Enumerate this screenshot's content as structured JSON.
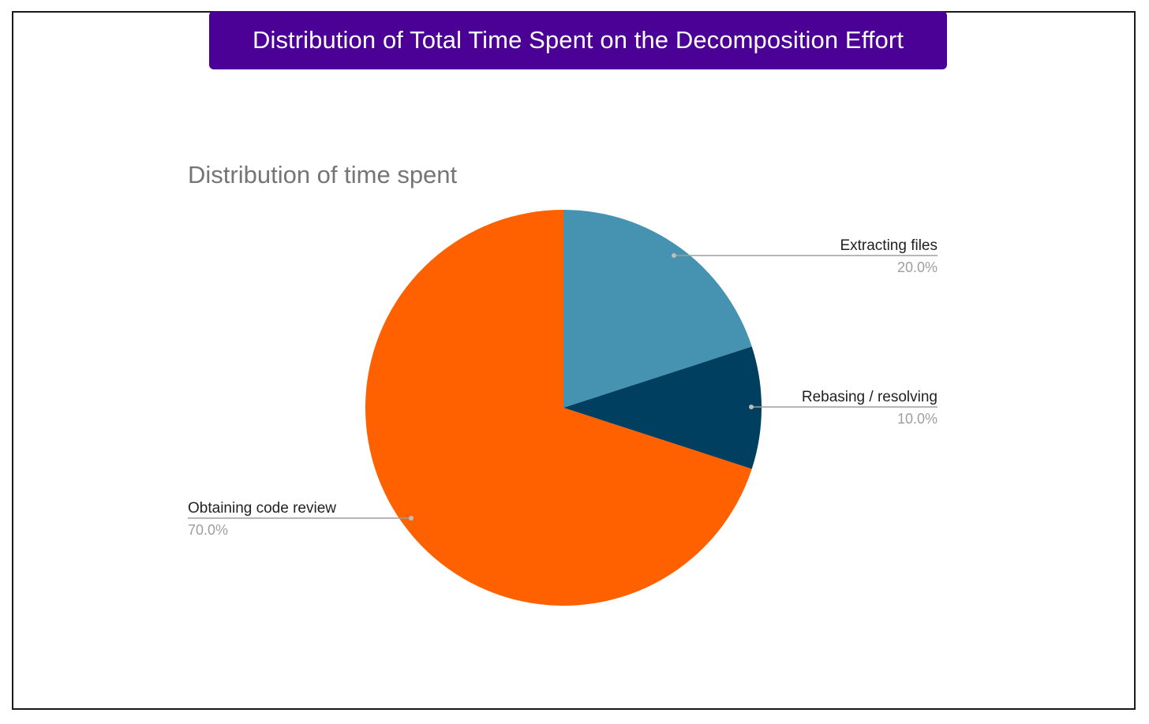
{
  "banner": {
    "title": "Distribution of Total Time Spent on the Decomposition Effort"
  },
  "colors": {
    "banner_bg": "#4b0096",
    "frame_border": "#1a1a1a"
  },
  "chart_data": {
    "type": "pie",
    "title": "Distribution of time spent",
    "start_angle_deg": 0,
    "direction": "clockwise",
    "slices": [
      {
        "label": "Extracting files",
        "value": 20.0,
        "display": "20.0%",
        "color": "#4592b1",
        "label_side": "right"
      },
      {
        "label": "Rebasing / resolving",
        "value": 10.0,
        "display": "10.0%",
        "color": "#003f5f",
        "label_side": "right"
      },
      {
        "label": "Obtaining code review",
        "value": 70.0,
        "display": "70.0%",
        "color": "#ff6100",
        "label_side": "left"
      }
    ]
  }
}
